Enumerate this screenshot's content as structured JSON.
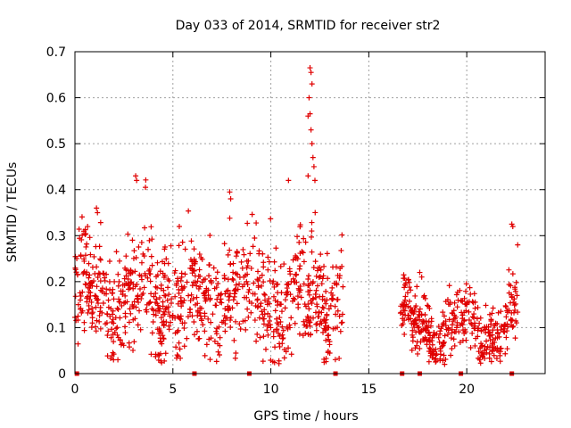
{
  "chart_data": {
    "type": "scatter",
    "title": "Day 033 of 2014, SRMTID for receiver str2",
    "xlabel": "GPS time / hours",
    "ylabel": "SRMTID / TECUs",
    "xlim": [
      0,
      24
    ],
    "ylim": [
      0,
      0.7
    ],
    "xticks": [
      0,
      5,
      10,
      15,
      20
    ],
    "yticks": [
      0,
      0.1,
      0.2,
      0.3,
      0.4,
      0.5,
      0.6,
      0.7
    ],
    "x_tick_labels": [
      "0",
      "5",
      "10",
      "15",
      "20"
    ],
    "y_tick_labels": [
      "0",
      "0.1",
      "0.2",
      "0.3",
      "0.4",
      "0.5",
      "0.6",
      "0.7"
    ],
    "grid": true,
    "marker": "+",
    "color": "#e00000",
    "segments": [
      {
        "x_start": 0.0,
        "x_end": 13.7,
        "base": 0.16,
        "spread": 0.09
      },
      {
        "x_start": 16.6,
        "x_end": 22.6,
        "base": 0.1,
        "spread": 0.05
      }
    ],
    "peaks": [
      {
        "x": 12.0,
        "y": 0.665
      },
      {
        "x": 12.05,
        "y": 0.655
      },
      {
        "x": 12.1,
        "y": 0.63
      },
      {
        "x": 11.95,
        "y": 0.6
      },
      {
        "x": 12.0,
        "y": 0.565
      },
      {
        "x": 11.9,
        "y": 0.56
      },
      {
        "x": 12.05,
        "y": 0.53
      },
      {
        "x": 12.1,
        "y": 0.5
      },
      {
        "x": 12.15,
        "y": 0.47
      },
      {
        "x": 12.2,
        "y": 0.45
      },
      {
        "x": 11.9,
        "y": 0.43
      },
      {
        "x": 12.25,
        "y": 0.42
      },
      {
        "x": 10.9,
        "y": 0.42
      },
      {
        "x": 3.1,
        "y": 0.43
      },
      {
        "x": 3.15,
        "y": 0.42
      },
      {
        "x": 3.6,
        "y": 0.405
      },
      {
        "x": 7.9,
        "y": 0.395
      },
      {
        "x": 7.95,
        "y": 0.38
      },
      {
        "x": 1.1,
        "y": 0.36
      },
      {
        "x": 1.15,
        "y": 0.35
      },
      {
        "x": 22.3,
        "y": 0.325
      },
      {
        "x": 22.35,
        "y": 0.32
      },
      {
        "x": 22.6,
        "y": 0.28
      },
      {
        "x": 17.6,
        "y": 0.22
      },
      {
        "x": 17.7,
        "y": 0.21
      }
    ],
    "baseline_marks_x": [
      0.1,
      6.1,
      8.9,
      13.3,
      16.7,
      17.6,
      19.7,
      22.3
    ]
  }
}
